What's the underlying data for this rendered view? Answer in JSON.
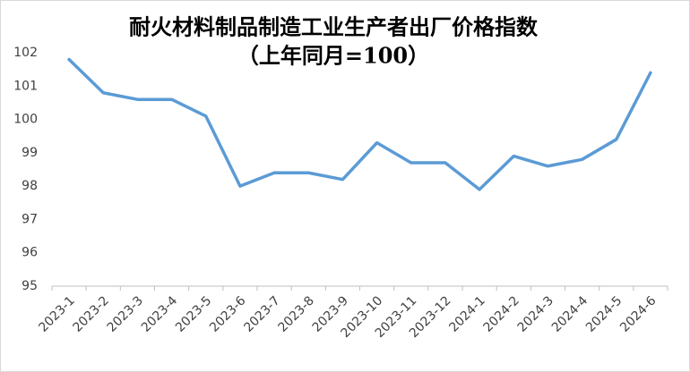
{
  "chart_data": {
    "type": "line",
    "title": "耐火材料制品制造工业生产者出厂价格指数",
    "subtitle": "（上年同月=100）",
    "categories": [
      "2023-1",
      "2023-2",
      "2023-3",
      "2023-4",
      "2023-5",
      "2023-6",
      "2023-7",
      "2023-8",
      "2023-9",
      "2023-10",
      "2023-11",
      "2023-12",
      "2024-1",
      "2024-2",
      "2024-3",
      "2024-4",
      "2024-5",
      "2024-6"
    ],
    "series": [
      {
        "name": "耐火材料制品制造工业生产者出厂价格指数",
        "color": "#5b9bd5",
        "values": [
          101.8,
          100.8,
          100.6,
          100.6,
          100.1,
          98.0,
          98.4,
          98.4,
          98.2,
          99.3,
          98.7,
          98.7,
          97.9,
          98.9,
          98.6,
          98.8,
          99.4,
          101.4
        ]
      }
    ],
    "ylim": [
      95,
      102
    ],
    "yticks": [
      95,
      96,
      97,
      98,
      99,
      100,
      101,
      102
    ],
    "grid": false
  }
}
